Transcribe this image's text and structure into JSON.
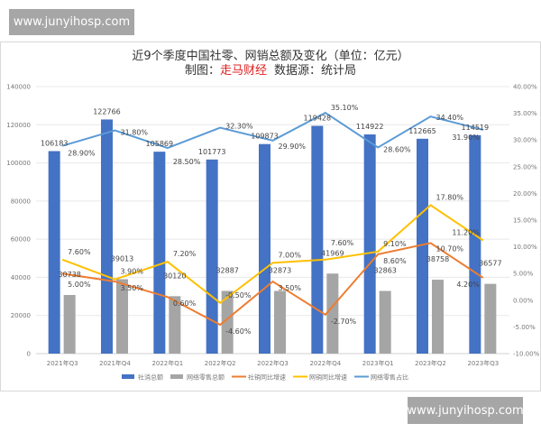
{
  "watermark": "www.junyihosp.com",
  "chart_data": {
    "type": "bar",
    "title": "近9个季度中国社零、网销总额及变化（单位：亿元）",
    "subtitle_prefix": "制图：",
    "subtitle_brand": "走马财经",
    "subtitle_source": "数据源：统计局",
    "categories": [
      "2021年Q3",
      "2021年Q4",
      "2022年Q1",
      "2022年Q2",
      "2022年Q3",
      "2022年Q4",
      "2023年Q1",
      "2023年Q2",
      "2023年Q3"
    ],
    "y_left": {
      "range": [
        0,
        140000
      ],
      "ticks": [
        "0",
        "20000",
        "40000",
        "60000",
        "80000",
        "100000",
        "120000",
        "140000"
      ]
    },
    "y_right": {
      "range": [
        -10,
        40
      ],
      "ticks": [
        "-10.00%",
        "-5.00%",
        "0.00%",
        "5.00%",
        "10.00%",
        "15.00%",
        "20.00%",
        "25.00%",
        "30.00%",
        "35.00%",
        "40.00%"
      ]
    },
    "grid": true,
    "legend_position": "bottom",
    "series": [
      {
        "name": "社消总额",
        "type": "bar",
        "axis": "left",
        "color": "#4472c4",
        "values": [
          106183,
          122766,
          105869,
          101773,
          109873,
          119428,
          114922,
          112665,
          114519
        ]
      },
      {
        "name": "网络零售总额",
        "type": "bar",
        "axis": "left",
        "color": "#a5a5a5",
        "values": [
          30738,
          39013,
          30120,
          32887,
          32873,
          41969,
          32863,
          38758,
          36577
        ]
      },
      {
        "name": "社销同比增速",
        "type": "line",
        "axis": "right",
        "unit": "%",
        "color": "#ed7d31",
        "values": [
          5.0,
          3.5,
          0.6,
          -4.6,
          3.5,
          -2.7,
          8.6,
          10.7,
          4.2
        ]
      },
      {
        "name": "网销同比增速",
        "type": "line",
        "axis": "right",
        "unit": "%",
        "color": "#ffc000",
        "values": [
          7.6,
          3.9,
          7.2,
          -0.5,
          7.0,
          7.6,
          9.1,
          17.8,
          11.2
        ]
      },
      {
        "name": "网络零售占比",
        "type": "line",
        "axis": "right",
        "unit": "%",
        "color": "#5b9bd5",
        "values": [
          28.9,
          31.8,
          28.5,
          32.3,
          29.9,
          35.1,
          28.6,
          34.4,
          31.9
        ]
      }
    ]
  }
}
